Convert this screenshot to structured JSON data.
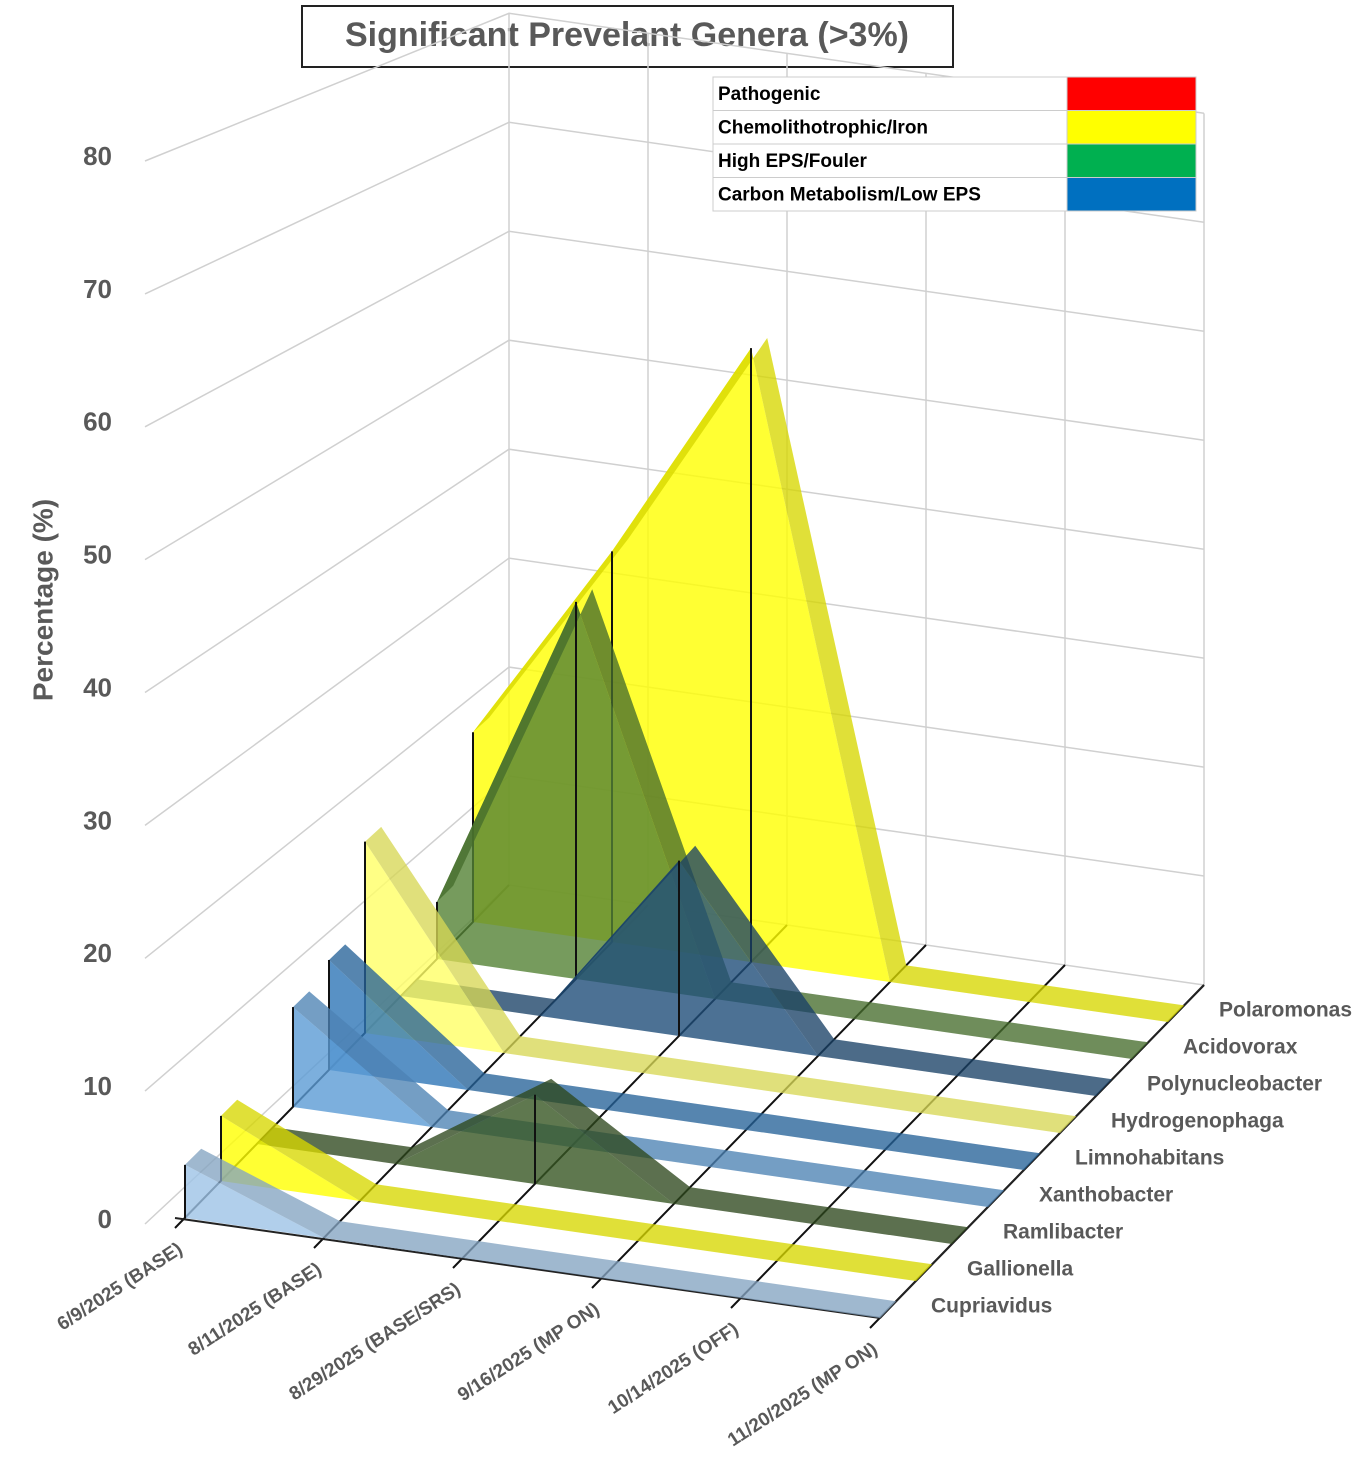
{
  "chart_data": {
    "type": "area3d",
    "title": "Significant Prevelant Genera (>3%)",
    "y_label": "Percentage (%)",
    "categories": [
      "6/9/2025 (BASE)",
      "8/11/2025 (BASE)",
      "8/29/2025 (BASE/SRS)",
      "9/16/2025 (MP ON)",
      "10/14/2025 (OFF)",
      "11/20/2025 (MP ON)"
    ],
    "series": [
      {
        "name": "Cupriavidus",
        "color": "#9dc3e6",
        "values": [
          4,
          0,
          0,
          0,
          0,
          0
        ]
      },
      {
        "name": "Gallionella",
        "color": "#ffff00",
        "values": [
          5,
          0,
          0,
          0,
          0,
          0
        ]
      },
      {
        "name": "Ramlibacter",
        "color": "#375623",
        "values": [
          0,
          0,
          7,
          0,
          0,
          0
        ]
      },
      {
        "name": "Xanthobacter",
        "color": "#5b9bd5",
        "values": [
          8,
          0,
          0,
          0,
          0,
          0
        ]
      },
      {
        "name": "Limnohabitans",
        "color": "#2e75b6",
        "values": [
          9,
          0,
          0,
          0,
          0,
          0
        ]
      },
      {
        "name": "Hydrogenophaga",
        "color": "#ffff66",
        "values": [
          16,
          0,
          0,
          0,
          0,
          0
        ]
      },
      {
        "name": "Polynucleobacter",
        "color": "#1f4e79",
        "values": [
          0,
          0,
          15,
          0,
          0,
          0
        ]
      },
      {
        "name": "Acidovorax",
        "color": "#548235",
        "values": [
          5,
          33,
          0,
          0,
          0,
          0
        ]
      },
      {
        "name": "Polaromonas",
        "color": "#ffff00",
        "values": [
          17,
          35,
          55,
          0,
          0,
          0
        ]
      }
    ],
    "ylim": [
      0,
      80
    ],
    "yticks": [
      0,
      10,
      20,
      30,
      40,
      50,
      60,
      70,
      80
    ],
    "grid": true,
    "legend_groups": [
      {
        "label": "Pathogenic",
        "color": "#ff0000"
      },
      {
        "label": "Chemolithotrophic/Iron",
        "color": "#ffff00"
      },
      {
        "label": "High EPS/Fouler",
        "color": "#00b050"
      },
      {
        "label": "Carbon Metabolism/Low EPS",
        "color": "#0070c0"
      }
    ]
  }
}
